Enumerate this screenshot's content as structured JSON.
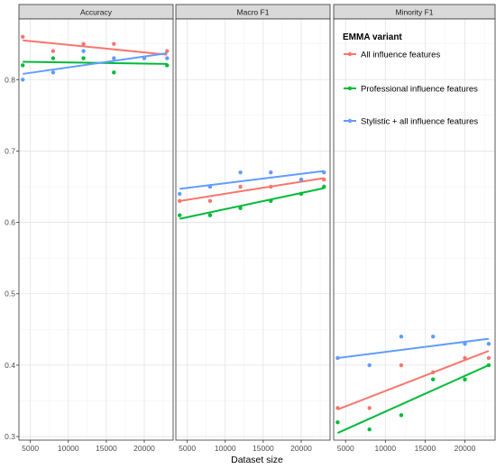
{
  "chart_data": {
    "type": "scatter",
    "trendline": "linear",
    "xlabel": "Dataset size",
    "ylabel": "",
    "xlim": [
      3500,
      23800
    ],
    "ylim": [
      0.295,
      0.885
    ],
    "xticks": [
      5000,
      10000,
      15000,
      20000
    ],
    "yticks": [
      0.3,
      0.4,
      0.5,
      0.6,
      0.7,
      0.8
    ],
    "grid": true,
    "legend": {
      "title": "EMMA variant",
      "placement": "top-right",
      "entries": [
        "All influence features",
        "Professional influence features",
        "Stylistic + all influence features"
      ]
    },
    "colors": {
      "All influence features": "#F8766D",
      "Professional influence features": "#00BA38",
      "Stylistic + all influence features": "#619CFF"
    },
    "facets": [
      {
        "label": "Accuracy",
        "series": [
          {
            "name": "All influence features",
            "points": [
              [
                4000,
                0.86
              ],
              [
                8000,
                0.84
              ],
              [
                12000,
                0.85
              ],
              [
                16000,
                0.85
              ],
              [
                23000,
                0.84
              ]
            ],
            "fit": [
              [
                4000,
                0.855
              ],
              [
                23000,
                0.835
              ]
            ]
          },
          {
            "name": "Professional influence features",
            "points": [
              [
                4000,
                0.82
              ],
              [
                8000,
                0.83
              ],
              [
                12000,
                0.83
              ],
              [
                16000,
                0.81
              ],
              [
                23000,
                0.82
              ]
            ],
            "fit": [
              [
                4000,
                0.825
              ],
              [
                23000,
                0.822
              ]
            ]
          },
          {
            "name": "Stylistic + all influence features",
            "points": [
              [
                4000,
                0.8
              ],
              [
                8000,
                0.81
              ],
              [
                12000,
                0.84
              ],
              [
                16000,
                0.83
              ],
              [
                20000,
                0.83
              ],
              [
                23000,
                0.83
              ]
            ],
            "fit": [
              [
                4000,
                0.808
              ],
              [
                23000,
                0.837
              ]
            ]
          }
        ]
      },
      {
        "label": "Macro F1",
        "series": [
          {
            "name": "All influence features",
            "points": [
              [
                4000,
                0.63
              ],
              [
                8000,
                0.63
              ],
              [
                12000,
                0.65
              ],
              [
                16000,
                0.65
              ],
              [
                20000,
                0.66
              ],
              [
                23000,
                0.66
              ]
            ],
            "fit": [
              [
                4000,
                0.63
              ],
              [
                23000,
                0.662
              ]
            ]
          },
          {
            "name": "Professional influence features",
            "points": [
              [
                4000,
                0.61
              ],
              [
                8000,
                0.61
              ],
              [
                12000,
                0.62
              ],
              [
                16000,
                0.63
              ],
              [
                20000,
                0.64
              ],
              [
                23000,
                0.65
              ]
            ],
            "fit": [
              [
                4000,
                0.605
              ],
              [
                23000,
                0.648
              ]
            ]
          },
          {
            "name": "Stylistic + all influence features",
            "points": [
              [
                4000,
                0.64
              ],
              [
                8000,
                0.65
              ],
              [
                12000,
                0.67
              ],
              [
                16000,
                0.67
              ],
              [
                20000,
                0.66
              ],
              [
                23000,
                0.67
              ]
            ],
            "fit": [
              [
                4000,
                0.647
              ],
              [
                23000,
                0.672
              ]
            ]
          }
        ]
      },
      {
        "label": "Minority F1",
        "series": [
          {
            "name": "All influence features",
            "points": [
              [
                4000,
                0.34
              ],
              [
                8000,
                0.34
              ],
              [
                12000,
                0.4
              ],
              [
                16000,
                0.39
              ],
              [
                20000,
                0.41
              ],
              [
                23000,
                0.41
              ]
            ],
            "fit": [
              [
                4000,
                0.338
              ],
              [
                23000,
                0.42
              ]
            ]
          },
          {
            "name": "Professional influence features",
            "points": [
              [
                4000,
                0.32
              ],
              [
                8000,
                0.31
              ],
              [
                12000,
                0.33
              ],
              [
                16000,
                0.38
              ],
              [
                20000,
                0.38
              ],
              [
                23000,
                0.4
              ]
            ],
            "fit": [
              [
                4000,
                0.305
              ],
              [
                23000,
                0.4
              ]
            ]
          },
          {
            "name": "Stylistic + all influence features",
            "points": [
              [
                4000,
                0.41
              ],
              [
                8000,
                0.4
              ],
              [
                12000,
                0.44
              ],
              [
                16000,
                0.44
              ],
              [
                20000,
                0.43
              ],
              [
                23000,
                0.43
              ]
            ],
            "fit": [
              [
                4000,
                0.41
              ],
              [
                23000,
                0.437
              ]
            ]
          }
        ]
      }
    ]
  }
}
